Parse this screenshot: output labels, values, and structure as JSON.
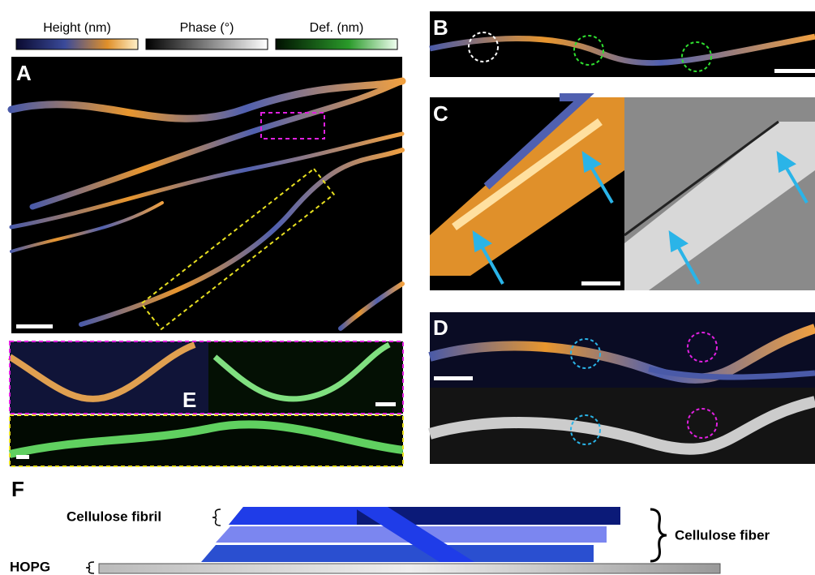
{
  "colorbars": [
    "Height (nm)",
    "Phase (°)",
    "Def. (nm)"
  ],
  "panel_labels": [
    "A",
    "B",
    "C",
    "D",
    "E",
    "F"
  ],
  "diagram": {
    "fibril_label": "Cellulose fibril",
    "fiber_label": "Cellulose fiber",
    "substrate_label": "HOPG"
  }
}
